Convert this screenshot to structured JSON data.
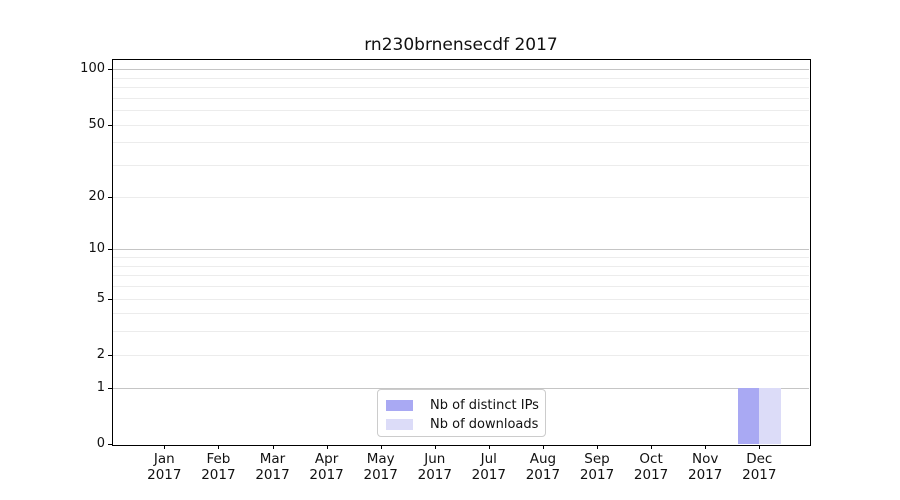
{
  "chart_data": {
    "type": "bar",
    "title": "rn230brnensecdf 2017",
    "months": [
      "Jan",
      "Feb",
      "Mar",
      "Apr",
      "May",
      "Jun",
      "Jul",
      "Aug",
      "Sep",
      "Oct",
      "Nov",
      "Dec"
    ],
    "year": "2017",
    "series": [
      {
        "name": "Nb of distinct IPs",
        "color": "#a9a9f3",
        "values": [
          0,
          0,
          0,
          0,
          0,
          0,
          0,
          0,
          0,
          0,
          0,
          1
        ]
      },
      {
        "name": "Nb of downloads",
        "color": "#dcdcf8",
        "values": [
          0,
          0,
          0,
          0,
          0,
          0,
          0,
          0,
          0,
          0,
          0,
          1
        ]
      }
    ],
    "yscale": "log1p",
    "ylim": [
      0,
      113
    ],
    "yticks": [
      0,
      1,
      2,
      5,
      10,
      20,
      50,
      100
    ],
    "ytick_labels": [
      "0",
      "1",
      "2",
      "5",
      "10",
      "20",
      "50",
      "100"
    ],
    "grid": {
      "major_lines": [
        1,
        10,
        100
      ],
      "minor_lines": [
        2,
        3,
        4,
        5,
        6,
        7,
        8,
        9,
        20,
        30,
        40,
        50,
        60,
        70,
        80,
        90
      ],
      "major_color": "#c5c5c5",
      "minor_color": "#ececec"
    },
    "legend": {
      "position": "lower center"
    },
    "axes": {
      "spine_color": "#000000",
      "background": "#ffffff"
    }
  }
}
